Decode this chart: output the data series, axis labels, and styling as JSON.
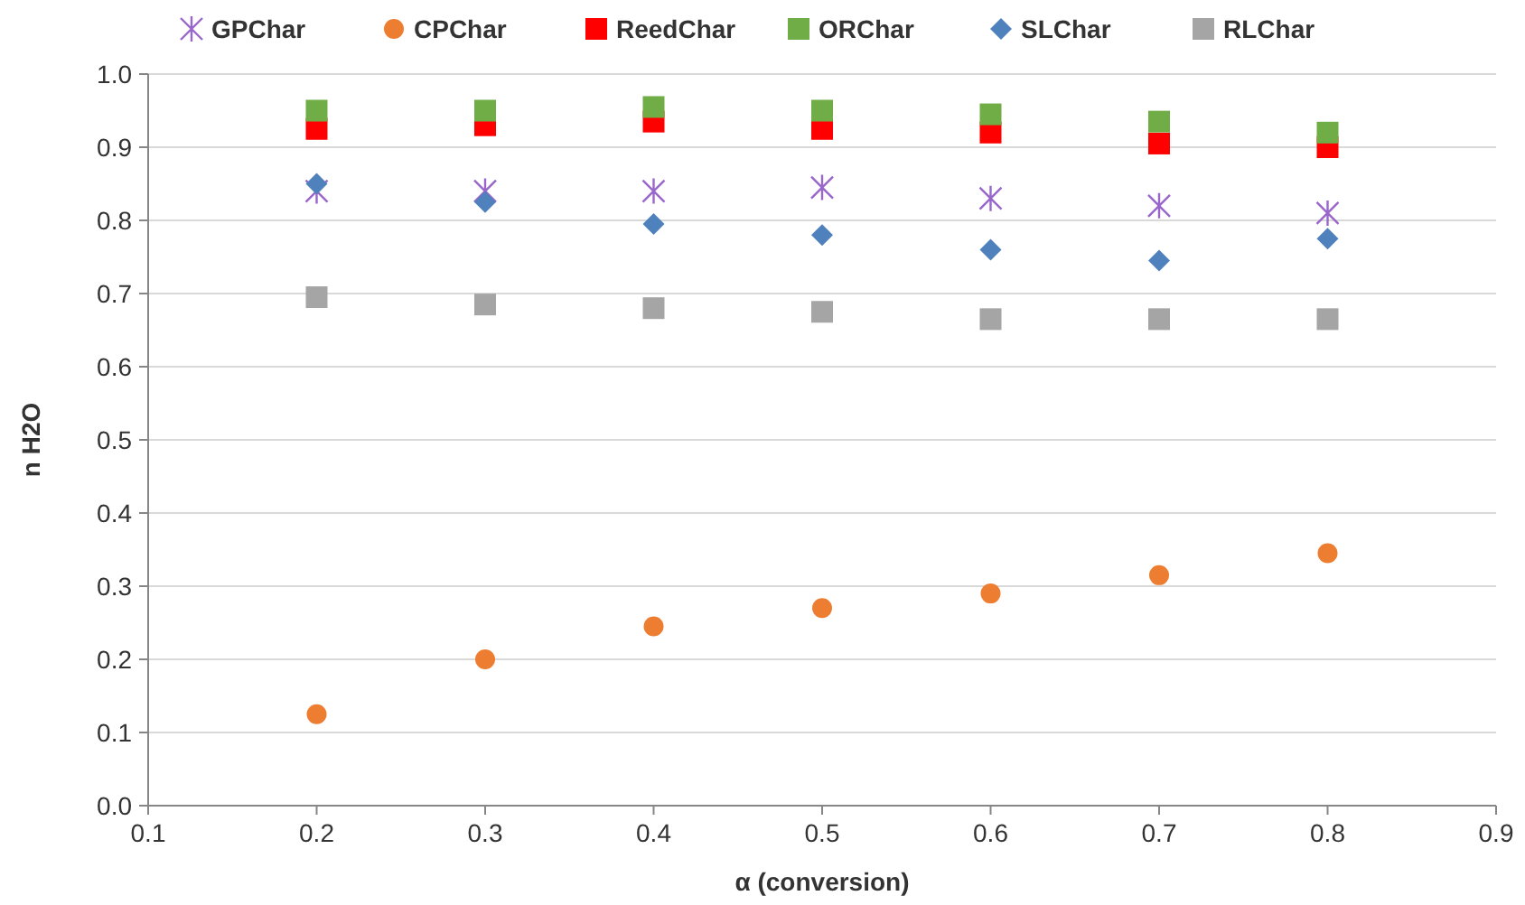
{
  "chart_data": {
    "type": "scatter",
    "xlabel": "α (conversion)",
    "ylabel": "n H2O",
    "x": [
      0.2,
      0.3,
      0.4,
      0.5,
      0.6,
      0.7,
      0.8
    ],
    "xlim": [
      0.1,
      0.9
    ],
    "xticks": [
      0.1,
      0.2,
      0.3,
      0.4,
      0.5,
      0.6,
      0.7,
      0.8,
      0.9
    ],
    "ylim": [
      0,
      1
    ],
    "yticks": [
      {
        "value": 0,
        "label": "0.0"
      },
      0.1,
      0.2,
      0.3,
      0.4,
      0.5,
      0.6,
      0.7,
      0.8,
      0.9,
      {
        "value": 1,
        "label": "1.0"
      }
    ],
    "grid": "y",
    "legend": "top",
    "series": [
      {
        "name": "GPChar",
        "color": "#9966cc",
        "marker": "cross",
        "values": [
          0.84,
          0.84,
          0.84,
          0.845,
          0.83,
          0.82,
          0.81
        ]
      },
      {
        "name": "CPChar",
        "color": "#ed7d31",
        "marker": "circle",
        "values": [
          0.125,
          0.2,
          0.245,
          0.27,
          0.29,
          0.315,
          0.345
        ]
      },
      {
        "name": "ReedChar",
        "color": "#ff0000",
        "marker": "square",
        "values": [
          0.925,
          0.93,
          0.935,
          0.925,
          0.92,
          0.905,
          0.9
        ]
      },
      {
        "name": "ORChar",
        "color": "#70ad47",
        "marker": "square",
        "values": [
          0.95,
          0.95,
          0.955,
          0.95,
          0.945,
          0.935,
          0.92
        ]
      },
      {
        "name": "SLChar",
        "color": "#4f81bd",
        "marker": "diamond",
        "values": [
          0.85,
          0.825,
          0.795,
          0.78,
          0.76,
          0.745,
          0.775
        ]
      },
      {
        "name": "RLChar",
        "color": "#a5a5a5",
        "marker": "square",
        "values": [
          0.695,
          0.685,
          0.68,
          0.675,
          0.665,
          0.665,
          0.665
        ]
      }
    ]
  }
}
